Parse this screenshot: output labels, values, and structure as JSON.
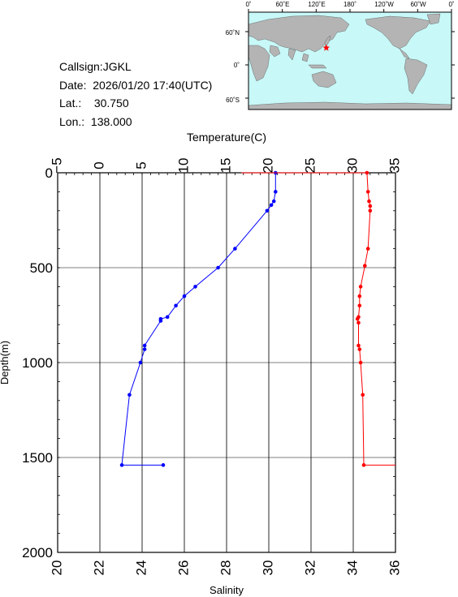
{
  "station": {
    "callsign_label": "Callsign:",
    "callsign": "JGKL",
    "date_label": "Date:",
    "date": "2026/01/20 17:40(UTC)",
    "lat_label": "Lat.:",
    "lat": "30.750",
    "lon_label": "Lon.:",
    "lon": "138.000"
  },
  "map": {
    "top_labels": [
      "0˚",
      "60˚E",
      "120˚E",
      "180˚",
      "120˚W",
      "60˚W",
      "0˚"
    ],
    "side_labels": [
      "60˚N",
      "0˚",
      "60˚S"
    ],
    "marker_lon": 138.0,
    "marker_lat": 30.75,
    "colors": {
      "ocean": "#c8f8f8",
      "land": "#b4b4b4",
      "marker": "#ff0000"
    }
  },
  "chart_data": {
    "type": "line",
    "ylabel": "Depth(m)",
    "ylim": [
      2000,
      0
    ],
    "yticks": [
      0,
      500,
      1000,
      1500,
      2000
    ],
    "top_axis": {
      "label": "Temperature(C)",
      "lim": [
        -5,
        35
      ],
      "ticks": [
        -5,
        0,
        5,
        10,
        15,
        20,
        25,
        30,
        35
      ],
      "tick_labels": [
        "−5",
        "0",
        "5",
        "10",
        "15",
        "20",
        "25",
        "30",
        "35"
      ]
    },
    "bottom_axis": {
      "label": "Salinity",
      "lim": [
        20,
        36
      ],
      "ticks": [
        20,
        22,
        24,
        26,
        28,
        30,
        32,
        34,
        36
      ],
      "tick_labels": [
        "20",
        "22",
        "24",
        "26",
        "28",
        "30",
        "32",
        "34",
        "36"
      ]
    },
    "grid": true,
    "series": [
      {
        "axis": "top",
        "color": "#0000ff",
        "markers": [
          [
            20.8,
            0
          ],
          [
            20.8,
            100
          ],
          [
            20.6,
            150
          ],
          [
            20.3,
            170
          ],
          [
            19.8,
            200
          ],
          [
            16.0,
            400
          ],
          [
            14.0,
            500
          ],
          [
            11.3,
            600
          ],
          [
            10.0,
            650
          ],
          [
            9.0,
            700
          ],
          [
            8.0,
            760
          ],
          [
            7.2,
            770
          ],
          [
            7.2,
            780
          ],
          [
            5.3,
            910
          ],
          [
            5.3,
            930
          ],
          [
            4.8,
            1000
          ],
          [
            3.5,
            1170
          ],
          [
            2.6,
            1540
          ],
          [
            7.5,
            1540
          ]
        ],
        "points": [
          [
            20.8,
            0
          ],
          [
            20.8,
            100
          ],
          [
            20.6,
            150
          ],
          [
            20.3,
            170
          ],
          [
            19.8,
            200
          ],
          [
            16.0,
            400
          ],
          [
            14.0,
            500
          ],
          [
            11.3,
            600
          ],
          [
            10.0,
            650
          ],
          [
            9.0,
            700
          ],
          [
            8.0,
            760
          ],
          [
            7.2,
            770
          ],
          [
            7.2,
            780
          ],
          [
            5.3,
            910
          ],
          [
            5.3,
            930
          ],
          [
            4.8,
            1000
          ],
          [
            3.5,
            1170
          ],
          [
            2.6,
            1540
          ],
          [
            7.5,
            1540
          ]
        ]
      },
      {
        "axis": "bottom",
        "color": "#ff0000",
        "markers": [
          [
            34.65,
            0
          ],
          [
            34.7,
            100
          ],
          [
            34.75,
            150
          ],
          [
            34.8,
            175
          ],
          [
            34.8,
            200
          ],
          [
            34.7,
            400
          ],
          [
            34.55,
            490
          ],
          [
            34.35,
            600
          ],
          [
            34.3,
            650
          ],
          [
            34.3,
            700
          ],
          [
            34.25,
            760
          ],
          [
            34.2,
            770
          ],
          [
            34.25,
            790
          ],
          [
            34.25,
            910
          ],
          [
            34.3,
            930
          ],
          [
            34.35,
            1000
          ],
          [
            34.45,
            1170
          ],
          [
            34.5,
            1540
          ]
        ],
        "points": [
          [
            28.7,
            0
          ],
          [
            34.65,
            0
          ],
          [
            34.7,
            100
          ],
          [
            34.75,
            150
          ],
          [
            34.8,
            175
          ],
          [
            34.8,
            200
          ],
          [
            34.7,
            400
          ],
          [
            34.55,
            490
          ],
          [
            34.35,
            600
          ],
          [
            34.3,
            650
          ],
          [
            34.3,
            700
          ],
          [
            34.25,
            760
          ],
          [
            34.2,
            770
          ],
          [
            34.25,
            790
          ],
          [
            34.25,
            910
          ],
          [
            34.3,
            930
          ],
          [
            34.35,
            1000
          ],
          [
            34.45,
            1170
          ],
          [
            34.5,
            1540
          ],
          [
            36.0,
            1540
          ]
        ]
      }
    ]
  }
}
